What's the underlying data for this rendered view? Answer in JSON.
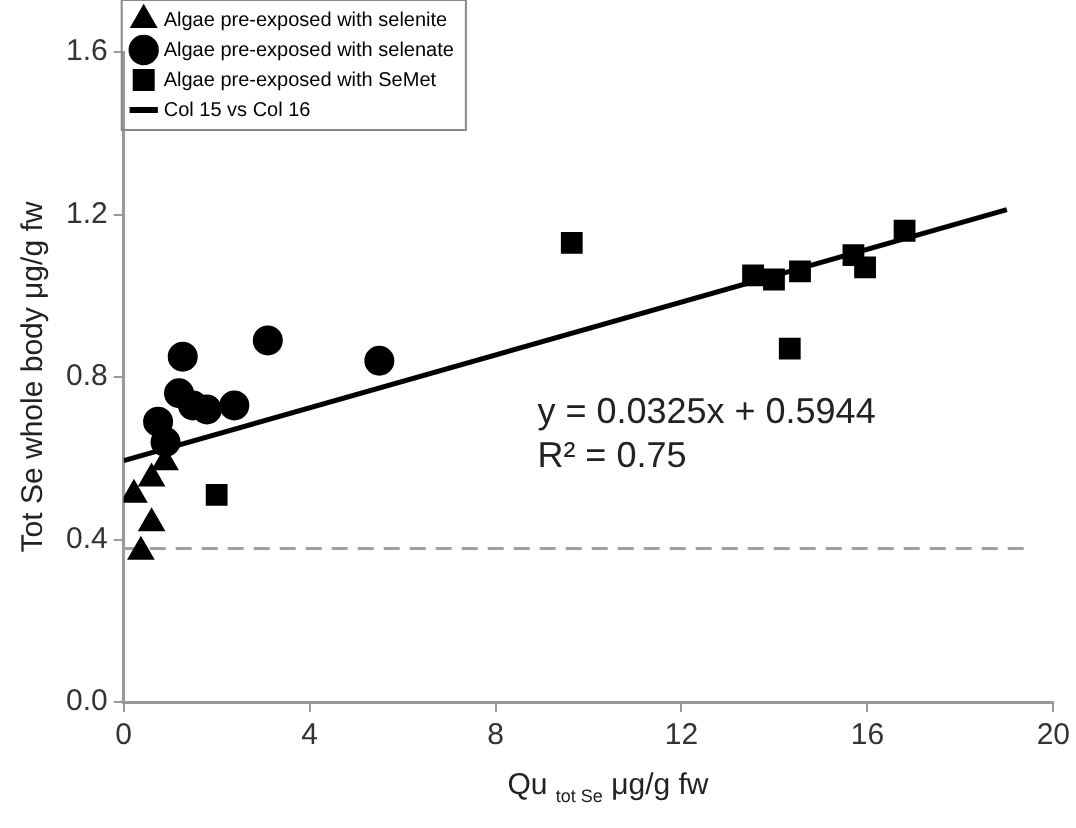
{
  "chart_data": {
    "type": "scatter",
    "xlabel": "Qu $_{tot Se}$ μg/g fw",
    "ylabel": "Tot Se whole body μg/g fw",
    "series": [
      {
        "name": "Algae pre-exposed with selenite",
        "color": "#000000",
        "marker": "triangle",
        "x": [
          0.22,
          0.37,
          0.6,
          0.6,
          0.89
        ],
        "values": [
          0.51,
          0.37,
          0.44,
          0.55,
          0.59
        ]
      },
      {
        "name": "Algae pre-exposed with selenate",
        "color": "#000000",
        "marker": "circle",
        "x": [
          0.74,
          0.9,
          1.19,
          1.27,
          1.49,
          1.79,
          2.38,
          3.1,
          5.5
        ],
        "values": [
          0.69,
          0.64,
          0.76,
          0.85,
          0.73,
          0.72,
          0.73,
          0.89,
          0.84
        ]
      },
      {
        "name": "Algae pre-exposed with SeMet",
        "color": "#000000",
        "marker": "square",
        "x": [
          2.0,
          9.64,
          13.54,
          13.99,
          14.33,
          14.55,
          15.7,
          15.95,
          16.8
        ],
        "values": [
          0.51,
          1.13,
          1.05,
          1.04,
          0.87,
          1.06,
          1.1,
          1.07,
          1.16
        ]
      },
      {
        "name": "Col 15 vs Col 16",
        "type": "line",
        "color": "#000000",
        "marker": "none",
        "line_style": "solid",
        "x": [
          0,
          19
        ],
        "values": [
          0.594,
          1.212
        ]
      }
    ],
    "ref_lines": [
      {
        "axis": "y",
        "value": 0.378,
        "color": "#a0a0a0",
        "line_style": "dashed"
      }
    ],
    "annotations": [
      "y = 0.0325x + 0.5944",
      "R² = 0.75"
    ],
    "xlim": [
      0,
      20
    ],
    "xticks": [
      0,
      4,
      8,
      12,
      16,
      20
    ],
    "ylim": [
      0,
      1.6
    ],
    "yticks": [
      {
        "value": 0,
        "label": "0.0"
      },
      0.4,
      0.8,
      1.2,
      1.6
    ],
    "grid": false,
    "legend": "top left"
  }
}
